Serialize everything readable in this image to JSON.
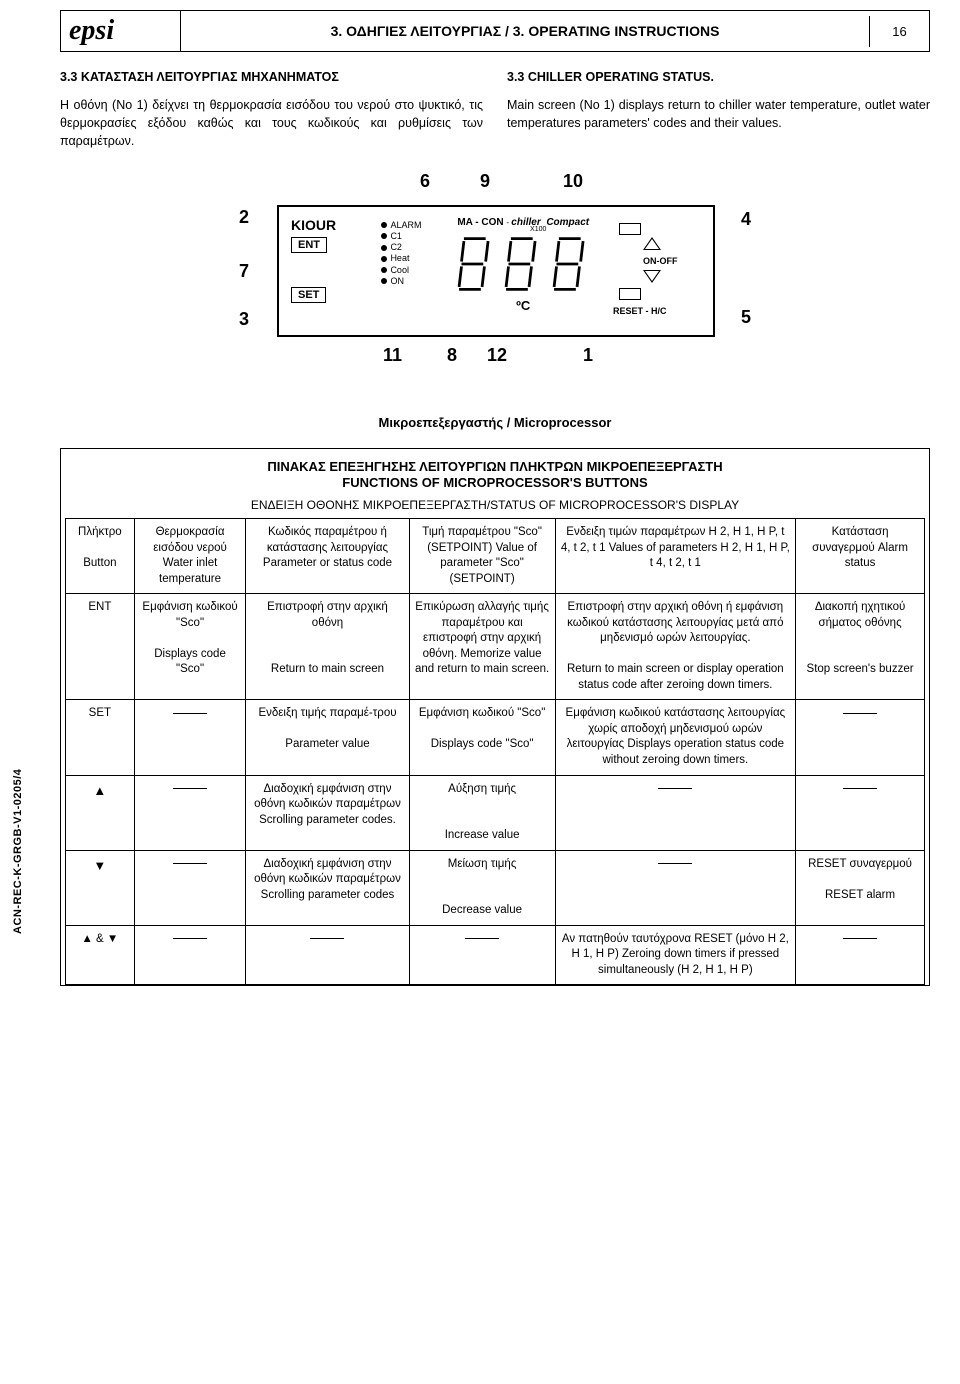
{
  "side_label": "ACN-REC-K-GRGB-V1-0205/4",
  "header": {
    "logo": "epsi",
    "title": "3. ΟΔΗΓΙΕΣ ΛΕΙΤΟΥΡΓΙΑΣ / 3. OPERATING INSTRUCTIONS",
    "page": "16"
  },
  "left_col": {
    "heading": "3.3 ΚΑΤΑΣΤΑΣΗ ΛΕΙΤΟΥΡΓΙΑΣ ΜΗΧΑΝΗΜΑΤΟΣ",
    "body": "Η οθόνη (Νο 1) δείχνει τη θερμοκρασία εισόδου του νερού στο ψυκτικό, τις θερμοκρασίες εξόδου καθώς και τους κωδικούς και ρυθμίσεις των παραμέτρων."
  },
  "right_col": {
    "heading": "3.3  CHILLER OPERATING STATUS.",
    "body": "Main screen (No 1) displays return to chiller water temperature, outlet water temperatures parameters' codes and their values."
  },
  "diagram": {
    "nums_top": {
      "n6": "6",
      "n9": "9",
      "n10": "10"
    },
    "nums_left": {
      "n2": "2",
      "n7": "7",
      "n3": "3"
    },
    "nums_right": {
      "n4": "4",
      "n5": "5"
    },
    "nums_bottom": {
      "n11": "11",
      "n8": "8",
      "n12": "12",
      "n1": "1"
    },
    "panel": {
      "brand": "KIOUR",
      "alarm": "ALARM",
      "macon": "MA - CON",
      "x100": "X100",
      "chiller": "chiller",
      "compact": "Compact",
      "ent": "ENT",
      "set": "SET",
      "c1": "C1",
      "c2": "C2",
      "heat": "Heat",
      "cool": "Cool",
      "on": "ON",
      "onoff": "ON-OFF",
      "reset": "RESET - H/C",
      "degc": "ºC"
    }
  },
  "caption": "Μικροεπεξεργαστής / Microprocessor",
  "table_title_gr": "ΠΙΝΑΚΑΣ ΕΠΕΞΗΓΗΣΗΣ ΛΕΙΤΟΥΡΓΙΩΝ ΠΛΗΚΤΡΩΝ ΜΙΚΡΟΕΠΕΞΕΡΓΑΣΤΗ",
  "table_title_en": "FUNCTIONS OF MICROPROCESSOR'S BUTTONS",
  "table_sub": "ΕΝΔΕΙΞΗ ΟΘΟΝΗΣ ΜΙΚΡΟΕΠΕΞΕΡΓΑΣΤΗ/STATUS OF MICROPROCESSOR'S DISPLAY",
  "head": {
    "c0": "Πλήκτρο\n\nButton",
    "c1": "Θερμοκρασία εισόδου νερού Water inlet temperature",
    "c2": "Κωδικός παραμέτρου ή κατάστασης λειτουργίας Parameter or status code",
    "c3": "Τιμή παραμέτρου \"Sco\" (SETPOINT) Value of parameter \"Sco\" (SETPOINT)",
    "c4": "Ενδειξη τιμών παραμέτρων H 2, H 1, H P, t 4, t 2, t 1 Values of parameters H 2, H 1, H P, t 4, t 2, t 1",
    "c5": "Κατάσταση συναγερμού Alarm status"
  },
  "rows": [
    {
      "c0": "ENT",
      "c1": "Εμφάνιση κωδικού \"Sco\"\n\nDisplays code \"Sco\"",
      "c2": "Επιστροφή στην αρχική οθόνη\n\n\nReturn to main screen",
      "c3": "Επικύρωση αλλαγής τιμής παραμέτρου και επιστροφή στην αρχική οθόνη. Memorize value and return to main screen.",
      "c4": "Επιστροφή στην αρχική οθόνη ή εμφάνιση κωδικού κατάστασης λειτουργίας μετά από μηδενισμό ωρών λειτουργίας.\n\nReturn to main screen or display operation status code after zeroing down timers.",
      "c5": "Διακοπή ηχητικού σήματος οθόνης\n\n\nStop screen's buzzer"
    },
    {
      "c0": "SET",
      "c1": "—",
      "c2": "Ενδειξη τιμής παραμέ-τρου\n\nParameter value",
      "c3": "Εμφάνιση κωδικού \"Sco\"\n\nDisplays code \"Sco\"",
      "c4": "Εμφάνιση κωδικού κατάστασης λειτουργίας χωρίς αποδοχή μηδενισμού ωρών λειτουργίας Displays operation status code without zeroing down timers.",
      "c5": "—"
    },
    {
      "c0": "▲",
      "c1": "—",
      "c2": "Διαδοχική εμφάνιση στην οθόνη κωδικών παραμέτρων Scrolling parameter codes.",
      "c3": "Αύξηση τιμής\n\n\nIncrease value",
      "c4": "—",
      "c5": "—"
    },
    {
      "c0": "▼",
      "c1": "—",
      "c2": "Διαδοχική εμφάνιση στην οθόνη κωδικών παραμέτρων Scrolling parameter codes",
      "c3": "Μείωση τιμής\n\n\nDecrease value",
      "c4": "—",
      "c5": "RESET συναγερμού\n\nRESET alarm"
    },
    {
      "c0": "▲ & ▼",
      "c1": "—",
      "c2": "—",
      "c3": "—",
      "c4": "Αν πατηθούν ταυτόχρονα RESET (μόνο H 2, H 1, H P) Zeroing down timers if pressed simultaneously (H 2, H 1, H P)",
      "c5": "—"
    }
  ]
}
